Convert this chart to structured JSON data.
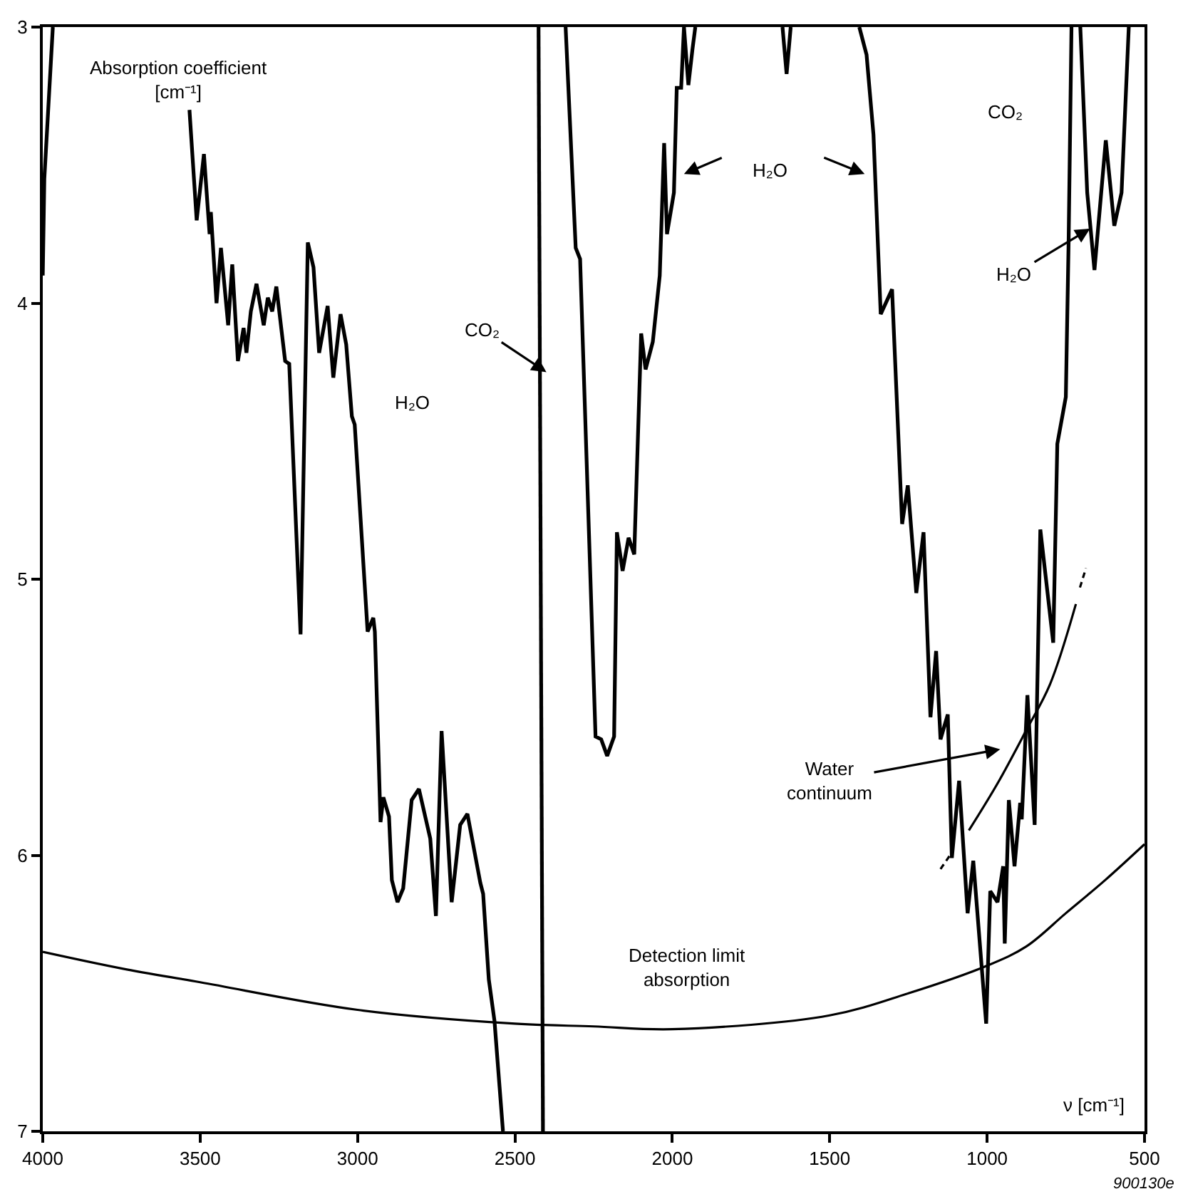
{
  "chart_data": {
    "type": "line",
    "ylabel": "Absorption coefficient\n[cm⁻¹]",
    "xlabel": "ν [cm⁻¹]",
    "xlim": [
      4000,
      500
    ],
    "xticks": [
      4000,
      3500,
      3000,
      2500,
      2000,
      1500,
      1000,
      500
    ],
    "ylim": [
      7,
      3
    ],
    "yticks": [
      3,
      4,
      5,
      6,
      7
    ],
    "line_style": "solid",
    "series": [
      {
        "color": "#000000",
        "x": [
          4000,
          3995,
          3968,
          3750,
          3534,
          3511,
          3488,
          3470,
          3466,
          3448,
          3434,
          3411,
          3398,
          3380,
          3362,
          3353,
          3339,
          3321,
          3298,
          3285,
          3271,
          3258,
          3230,
          3217,
          3181,
          3158,
          3140,
          3122,
          3095,
          3077,
          3054,
          3036,
          3018,
          3009,
          2968,
          2950,
          2945,
          2927,
          2918,
          2900,
          2891,
          2873,
          2855,
          2828,
          2805,
          2769,
          2751,
          2733,
          2701,
          2674,
          2651,
          2628,
          2610,
          2601,
          2583,
          2565,
          2538,
          2475,
          2411,
          2425,
          2380,
          2339,
          2307,
          2293,
          2244,
          2226,
          2207,
          2185,
          2176,
          2158,
          2139,
          2121,
          2099,
          2085,
          2062,
          2040,
          2026,
          2017,
          1995,
          1986,
          1972,
          1963,
          1949,
          1936,
          1927,
          1800,
          1650,
          1637,
          1624,
          1500,
          1406,
          1383,
          1361,
          1338,
          1302,
          1270,
          1252,
          1225,
          1202,
          1180,
          1162,
          1148,
          1125,
          1112,
          1089,
          1062,
          1044,
          1003,
          990,
          967,
          949,
          944,
          931,
          913,
          895,
          890,
          872,
          849,
          831,
          790,
          777,
          750,
          741,
          732,
          718,
          704,
          682,
          659,
          623,
          596,
          573,
          550
        ],
        "values": [
          3.9,
          3.55,
          3.0,
          null,
          3.3,
          3.7,
          3.46,
          3.75,
          3.67,
          4.0,
          3.8,
          4.08,
          3.86,
          4.21,
          4.09,
          4.18,
          4.03,
          3.93,
          4.08,
          3.98,
          4.03,
          3.94,
          4.21,
          4.22,
          5.2,
          3.78,
          3.87,
          4.18,
          4.01,
          4.27,
          4.04,
          4.15,
          4.41,
          4.44,
          5.19,
          5.14,
          5.19,
          5.88,
          5.79,
          5.86,
          6.09,
          6.17,
          6.12,
          5.8,
          5.76,
          5.94,
          6.22,
          5.55,
          6.17,
          5.89,
          5.85,
          5.99,
          6.1,
          6.14,
          6.45,
          6.6,
          7.0,
          null,
          7.0,
          3.0,
          null,
          3.0,
          3.8,
          3.84,
          5.57,
          5.58,
          5.64,
          5.57,
          4.83,
          4.97,
          4.85,
          4.91,
          4.11,
          4.24,
          4.14,
          3.9,
          3.42,
          3.75,
          3.6,
          3.22,
          3.22,
          3.0,
          3.21,
          3.08,
          3.0,
          null,
          3.0,
          3.17,
          3.0,
          null,
          3.0,
          3.1,
          3.39,
          4.04,
          3.95,
          4.8,
          4.66,
          5.05,
          4.83,
          5.5,
          5.26,
          5.58,
          5.49,
          6.01,
          5.73,
          6.21,
          6.02,
          6.61,
          6.13,
          6.17,
          6.04,
          6.32,
          5.8,
          6.04,
          5.81,
          5.87,
          5.42,
          5.89,
          4.82,
          5.23,
          4.51,
          4.34,
          3.77,
          3.0,
          null,
          3.0,
          3.6,
          3.88,
          3.41,
          3.72,
          3.6,
          3.0
        ]
      },
      {
        "color": "#000000",
        "x": [
          4000,
          3750,
          3500,
          3000,
          2500,
          2250,
          2000,
          1500,
          1250,
          1000,
          875,
          750,
          625,
          500
        ],
        "values": [
          6.35,
          6.41,
          6.46,
          6.56,
          6.61,
          6.62,
          6.63,
          6.58,
          6.5,
          6.4,
          6.33,
          6.21,
          6.09,
          5.96
        ]
      },
      {
        "color": "#000000",
        "line_style": "dashed",
        "x": [
          1148,
          1112
        ],
        "values": [
          6.05,
          5.99
        ]
      },
      {
        "color": "#000000",
        "x": [
          1058,
          967,
          877,
          800,
          718
        ],
        "values": [
          5.91,
          5.74,
          5.55,
          5.38,
          5.09
        ]
      },
      {
        "color": "#000000",
        "line_style": "dashed",
        "x": [
          705,
          686
        ],
        "values": [
          5.03,
          4.96
        ]
      }
    ],
    "annotations": [
      {
        "text": "CO₂",
        "x": 2400,
        "y": 4.25
      },
      "H₂O",
      "CO₂",
      {
        "text": "H₂O",
        "x": 673,
        "y": 3.73
      },
      "H₂O",
      "Water\ncontinuum",
      "Detection limit\nabsorption",
      "900130e"
    ]
  }
}
